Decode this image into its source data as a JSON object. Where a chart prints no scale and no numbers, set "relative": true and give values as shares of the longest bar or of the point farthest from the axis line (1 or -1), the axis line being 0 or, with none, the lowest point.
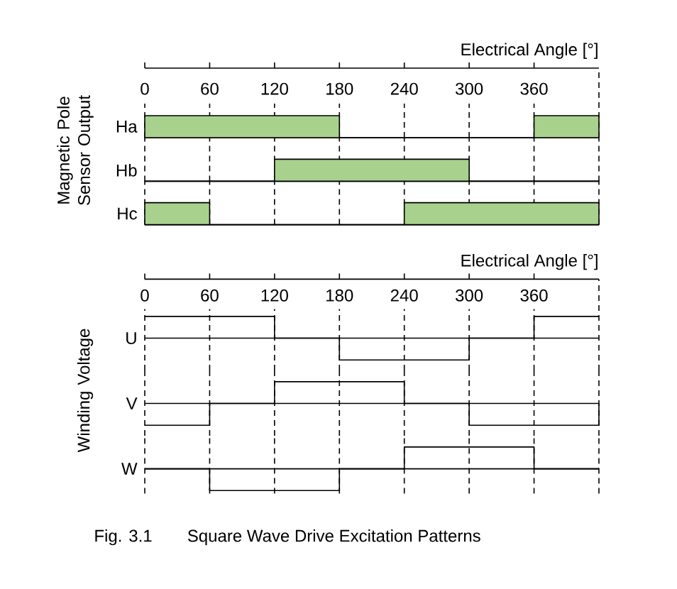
{
  "chart_data": [
    {
      "type": "area",
      "relative": true,
      "xlabel": "Electrical Angle [°]",
      "series": [
        {
          "name": "Ha",
          "color": "#a9d18e",
          "x": [
            0,
            180,
            180,
            360,
            360,
            420
          ],
          "values": [
            1,
            1,
            0,
            0,
            1,
            1
          ]
        }
      ],
      "xlim": [
        0,
        420
      ],
      "xticks": [
        0,
        60,
        120,
        180,
        240,
        300,
        360
      ],
      "grid": "x",
      "tick_labels": "x"
    },
    {
      "type": "area",
      "relative": true,
      "ylabel": "Magnetic Pole Sensor Output",
      "series": [
        {
          "name": "Hb",
          "color": "#a9d18e",
          "x": [
            0,
            120,
            120,
            300,
            300,
            420
          ],
          "values": [
            0,
            0,
            1,
            1,
            0,
            0
          ]
        }
      ],
      "xlim": [
        0,
        420
      ],
      "xticks": [
        0,
        60,
        120,
        180,
        240,
        300,
        360
      ],
      "grid": "x",
      "tick_labels": false
    },
    {
      "type": "area",
      "relative": true,
      "series": [
        {
          "name": "Hc",
          "color": "#a9d18e",
          "x": [
            0,
            60,
            60,
            240,
            240,
            420
          ],
          "values": [
            1,
            1,
            0,
            0,
            1,
            1
          ]
        }
      ],
      "xlim": [
        0,
        420
      ],
      "xticks": [
        0,
        60,
        120,
        180,
        240,
        300,
        360
      ],
      "grid": "x",
      "tick_labels": false
    },
    {
      "type": "step",
      "relative": true,
      "xlabel": "Electrical Angle [°]",
      "series": [
        {
          "name": "U",
          "color": "#000000",
          "x": [
            0,
            120,
            180,
            300,
            360,
            420
          ],
          "values": [
            1,
            0,
            -1,
            0,
            1,
            1
          ]
        }
      ],
      "xlim": [
        0,
        420
      ],
      "xticks": [
        0,
        60,
        120,
        180,
        240,
        300,
        360
      ],
      "grid": "x",
      "tick_labels": "x"
    },
    {
      "type": "step",
      "relative": true,
      "ylabel": "Winding Voltage",
      "series": [
        {
          "name": "V",
          "color": "#000000",
          "x": [
            0,
            60,
            120,
            240,
            300,
            420
          ],
          "values": [
            -1,
            0,
            1,
            0,
            -1,
            0
          ]
        }
      ],
      "xlim": [
        0,
        420
      ],
      "xticks": [
        0,
        60,
        120,
        180,
        240,
        300,
        360
      ],
      "grid": "x",
      "tick_labels": false
    },
    {
      "type": "step",
      "relative": true,
      "series": [
        {
          "name": "W",
          "color": "#000000",
          "x": [
            0,
            60,
            180,
            240,
            360,
            420
          ],
          "values": [
            0,
            -1,
            0,
            1,
            0,
            0
          ]
        }
      ],
      "xlim": [
        0,
        420
      ],
      "xticks": [
        0,
        60,
        120,
        180,
        240,
        300,
        360
      ],
      "grid": "x",
      "tick_labels": false,
      "annotations": [
        "Fig. 3.1",
        "Square Wave Drive Excitation Patterns"
      ]
    }
  ]
}
